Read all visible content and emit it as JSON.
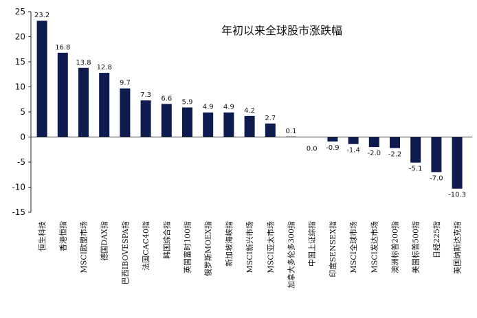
{
  "chart_data": {
    "type": "bar",
    "title": "年初以来全球股市涨跌幅",
    "xlabel": "",
    "ylabel": "",
    "ylim": [
      -15,
      25
    ],
    "yticks": [
      -15,
      -10,
      -5,
      0,
      5,
      10,
      15,
      20,
      25
    ],
    "grid": false,
    "legend": "none",
    "bar_color": "#0d1b4f",
    "categories": [
      "恒生科技",
      "香港恒指",
      "MSCI欧盟市场",
      "德国DAX指",
      "巴西IBOVESPA指",
      "法国CAC40指",
      "韩国综合指",
      "英国富时100指",
      "俄罗斯MOEX指",
      "新加坡海峡指",
      "MSCI新兴市场",
      "MSCI亚太市场",
      "加拿大多伦多300指",
      "中国上证综指",
      "印度SENSEX指",
      "MSCI全球市场",
      "MSCI发达市场",
      "澳洲标普200指",
      "美国标普500指",
      "日经225指",
      "美国纳斯达克指"
    ],
    "values": [
      23.2,
      16.8,
      13.8,
      12.8,
      9.7,
      7.3,
      6.6,
      5.9,
      4.9,
      4.9,
      4.2,
      2.7,
      0.1,
      0.0,
      -0.9,
      -1.4,
      -2.0,
      -2.2,
      -5.1,
      -7.0,
      -10.3
    ],
    "value_labels": [
      "23.2",
      "16.8",
      "13.8",
      "12.8",
      "9.7",
      "7.3",
      "6.6",
      "5.9",
      "4.9",
      "4.9",
      "4.2",
      "2.7",
      "0.1",
      "0.0",
      "-0.9",
      "-1.4",
      "-2.0",
      "-2.2",
      "-5.1",
      "-7.0",
      "-10.3"
    ]
  }
}
